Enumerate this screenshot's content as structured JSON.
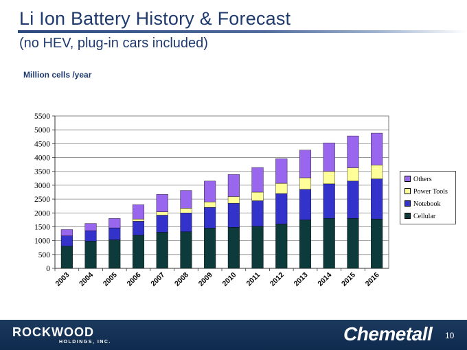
{
  "slide": {
    "title": "Li Ion Battery History & Forecast",
    "subtitle": "(no HEV, plug-in cars included)",
    "unit_label": "Million cells /year",
    "page_number": "10"
  },
  "logos": {
    "rockwood_name": "ROCKWOOD",
    "rockwood_sub": "HOLDINGS, INC.",
    "chemetall": "Chemetall"
  },
  "chart_data": {
    "type": "bar",
    "stacked": true,
    "title": "",
    "xlabel": "",
    "ylabel": "Million cells /year",
    "ylim": [
      0,
      5500
    ],
    "yticks": [
      0,
      500,
      1000,
      1500,
      2000,
      2500,
      3000,
      3500,
      4000,
      4500,
      5000,
      5500
    ],
    "grid": true,
    "legend_position": "right",
    "categories": [
      "2003",
      "2004",
      "2005",
      "2006",
      "2007",
      "2008",
      "2009",
      "2010",
      "2011",
      "2012",
      "2013",
      "2014",
      "2015",
      "2016"
    ],
    "series": [
      {
        "name": "Cellular",
        "color": "#0d3a3a",
        "values": [
          800,
          980,
          1030,
          1200,
          1300,
          1320,
          1450,
          1480,
          1520,
          1600,
          1750,
          1800,
          1800,
          1780
        ]
      },
      {
        "name": "Notebook",
        "color": "#3333cc",
        "values": [
          370,
          380,
          430,
          500,
          620,
          680,
          750,
          870,
          920,
          1100,
          1100,
          1250,
          1350,
          1450
        ]
      },
      {
        "name": "Power Tools",
        "color": "#ffff99",
        "values": [
          0,
          0,
          0,
          80,
          120,
          170,
          200,
          240,
          310,
          370,
          420,
          450,
          480,
          500
        ]
      },
      {
        "name": "Others",
        "color": "#9966ee",
        "values": [
          230,
          260,
          340,
          520,
          630,
          640,
          750,
          800,
          890,
          890,
          1000,
          1030,
          1150,
          1150
        ]
      }
    ]
  }
}
